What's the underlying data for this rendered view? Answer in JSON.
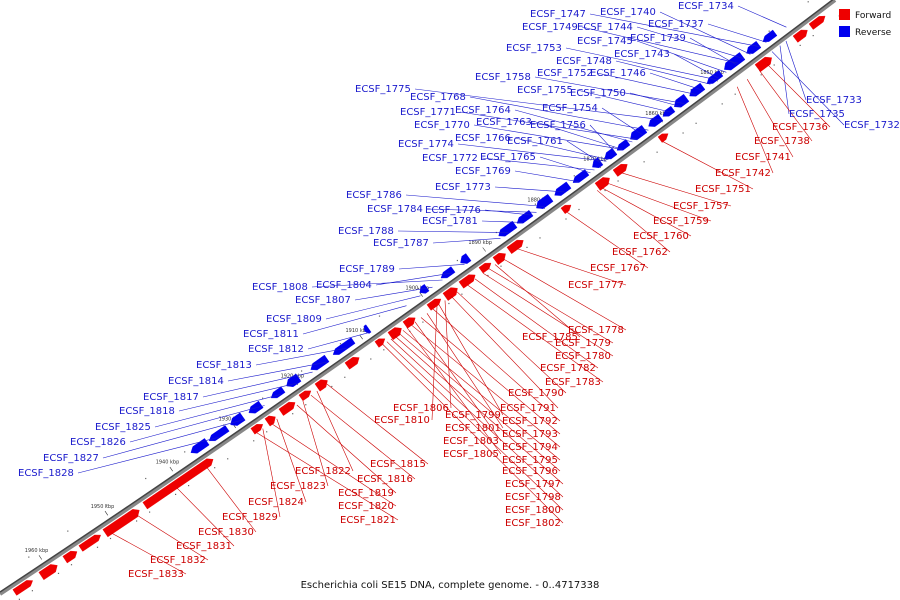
{
  "caption": "Escherichia coli SE15 DNA, complete genome. - 0..4717338",
  "legend": [
    {
      "label": "Forward",
      "color": "#ee0000"
    },
    {
      "label": "Reverse",
      "color": "#0000ee"
    }
  ],
  "ticks": [
    "1850 kbp",
    "1860 kbp",
    "1870 kbp",
    "1880 kbp",
    "1890 kbp",
    "1900 kbp",
    "1910 kbp",
    "1920 kbp",
    "1930 kbp",
    "1940 kbp",
    "1950 kbp",
    "1960 kbp"
  ],
  "forward_labels": [
    "ECSF_1736",
    "ECSF_1738",
    "ECSF_1741",
    "ECSF_1742",
    "ECSF_1751",
    "ECSF_1757",
    "ECSF_1759",
    "ECSF_1760",
    "ECSF_1762",
    "ECSF_1767",
    "ECSF_1777",
    "ECSF_1778",
    "ECSF_1785",
    "ECSF_1779",
    "ECSF_1780",
    "ECSF_1782",
    "ECSF_1783",
    "ECSF_1790",
    "ECSF_1791",
    "ECSF_1806",
    "ECSF_1799",
    "ECSF_1810",
    "ECSF_1792",
    "ECSF_1801",
    "ECSF_1793",
    "ECSF_1803",
    "ECSF_1794",
    "ECSF_1805",
    "ECSF_1795",
    "ECSF_1796",
    "ECSF_1797",
    "ECSF_1815",
    "ECSF_1798",
    "ECSF_1822",
    "ECSF_1816",
    "ECSF_1800",
    "ECSF_1823",
    "ECSF_1819",
    "ECSF_1802",
    "ECSF_1824",
    "ECSF_1820",
    "ECSF_1829",
    "ECSF_1821",
    "ECSF_1830",
    "ECSF_1831",
    "ECSF_1832",
    "ECSF_1833"
  ],
  "reverse_labels": [
    "ECSF_1747",
    "ECSF_1740",
    "ECSF_1734",
    "ECSF_1749",
    "ECSF_1744",
    "ECSF_1737",
    "ECSF_1745",
    "ECSF_1739",
    "ECSF_1753",
    "ECSF_1748",
    "ECSF_1743",
    "ECSF_1752",
    "ECSF_1746",
    "ECSF_1758",
    "ECSF_1755",
    "ECSF_1750",
    "ECSF_1775",
    "ECSF_1768",
    "ECSF_1754",
    "ECSF_1764",
    "ECSF_1771",
    "ECSF_1763",
    "ECSF_1756",
    "ECSF_1770",
    "ECSF_1766",
    "ECSF_1761",
    "ECSF_1774",
    "ECSF_1772",
    "ECSF_1765",
    "ECSF_1769",
    "ECSF_1773",
    "ECSF_1786",
    "ECSF_1784",
    "ECSF_1776",
    "ECSF_1781",
    "ECSF_1788",
    "ECSF_1787",
    "ECSF_1789",
    "ECSF_1808",
    "ECSF_1804",
    "ECSF_1807",
    "ECSF_1809",
    "ECSF_1811",
    "ECSF_1812",
    "ECSF_1813",
    "ECSF_1814",
    "ECSF_1817",
    "ECSF_1818",
    "ECSF_1825",
    "ECSF_1826",
    "ECSF_1827",
    "ECSF_1828",
    "ECSF_1733",
    "ECSF_1735",
    "ECSF_1732"
  ]
}
